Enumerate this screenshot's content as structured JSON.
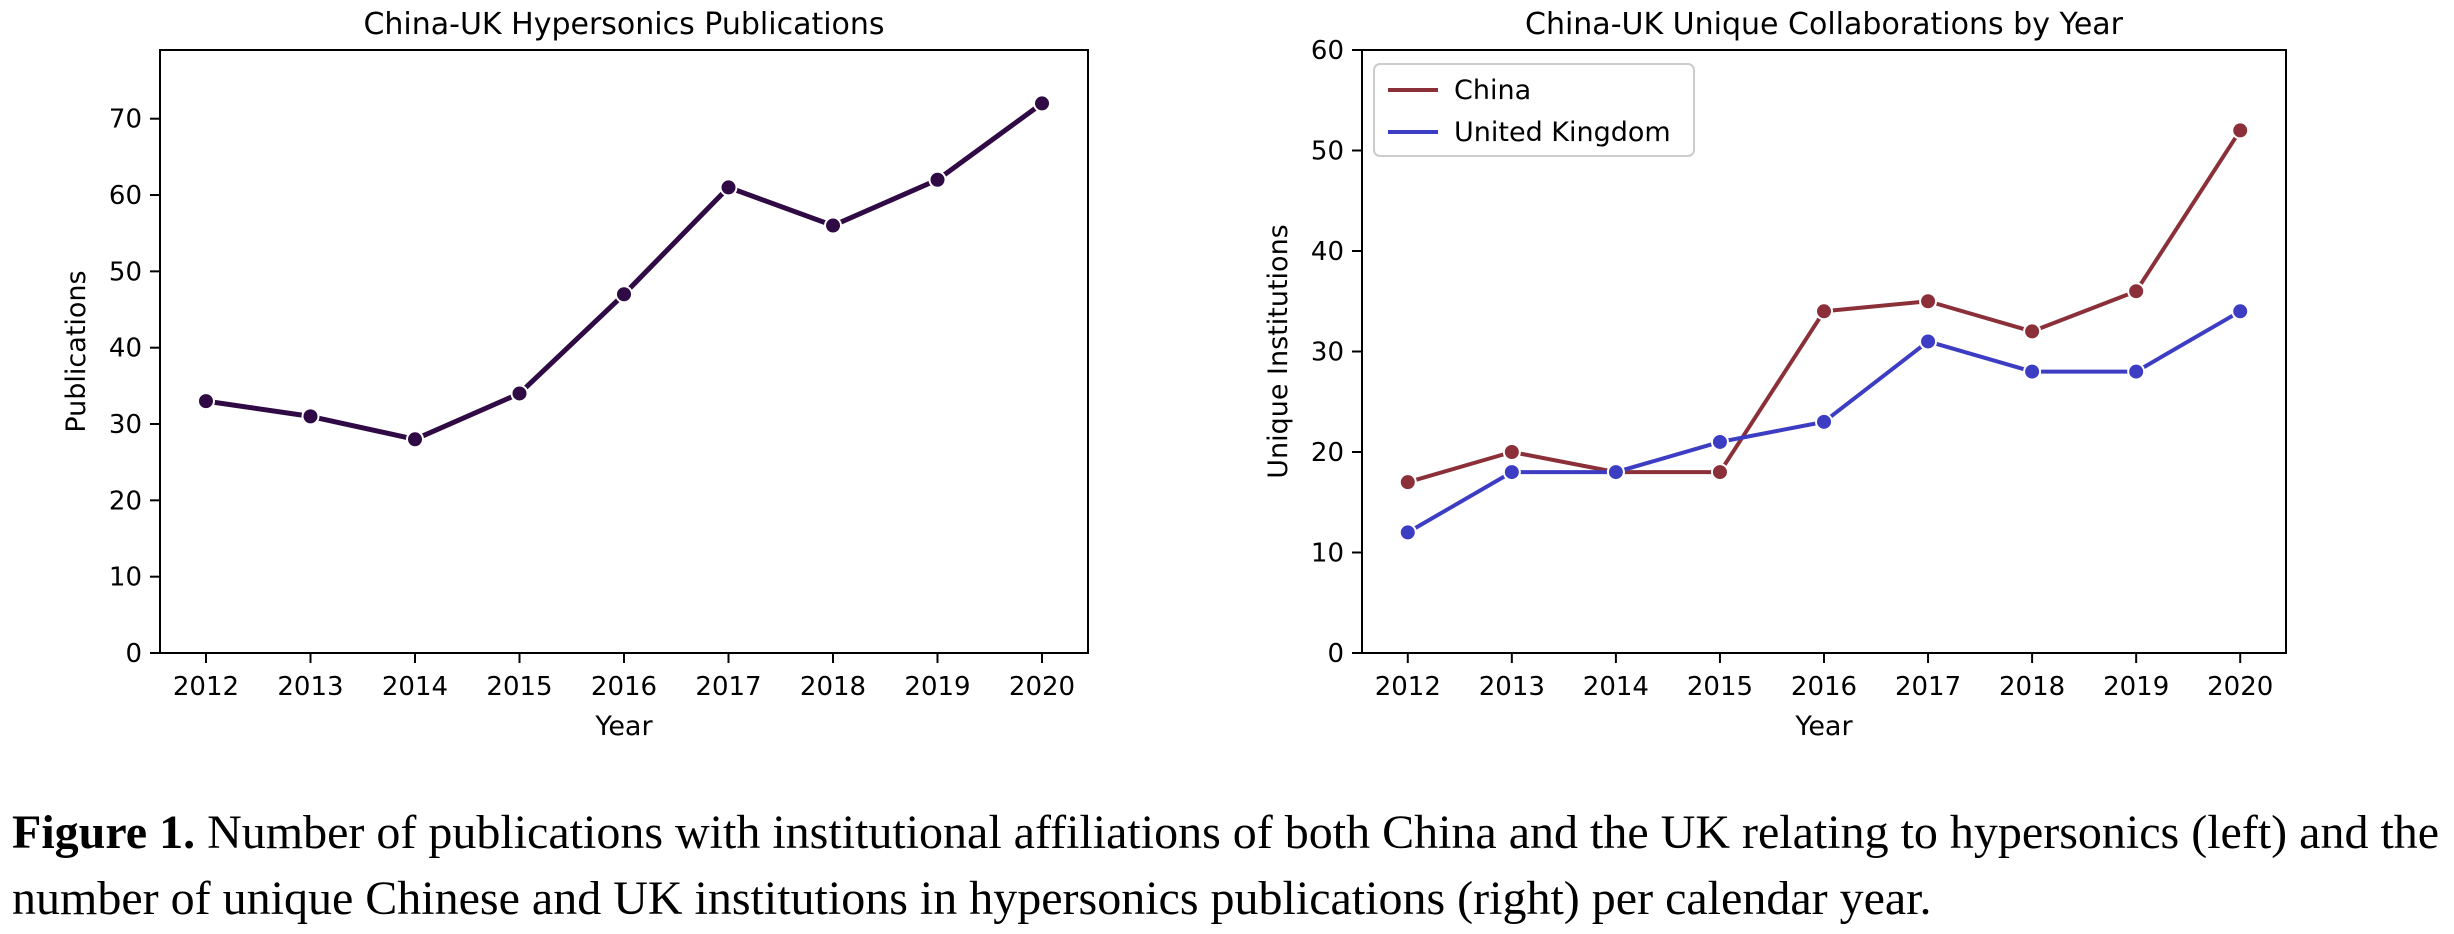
{
  "chart_data": [
    {
      "type": "line",
      "title": "China-UK Hypersonics Publications",
      "xlabel": "Year",
      "ylabel": "Publications",
      "x": [
        2012,
        2013,
        2014,
        2015,
        2016,
        2017,
        2018,
        2019,
        2020
      ],
      "ylim": [
        0,
        79
      ],
      "yticks": [
        0,
        10,
        20,
        30,
        40,
        50,
        60,
        70
      ],
      "grid": false,
      "series": [
        {
          "color": "#2f0a44",
          "values": [
            33,
            31,
            28,
            34,
            47,
            61,
            56,
            62,
            72
          ]
        }
      ]
    },
    {
      "type": "line",
      "title": "China-UK Unique Collaborations by Year",
      "xlabel": "Year",
      "ylabel": "Unique Institutions",
      "x": [
        2012,
        2013,
        2014,
        2015,
        2016,
        2017,
        2018,
        2019,
        2020
      ],
      "ylim": [
        0,
        60
      ],
      "yticks": [
        0,
        10,
        20,
        30,
        40,
        50,
        60
      ],
      "grid": false,
      "legend": "top-left",
      "series": [
        {
          "name": "China",
          "color": "#8b3039",
          "values": [
            17,
            20,
            18,
            18,
            34,
            35,
            32,
            36,
            52
          ]
        },
        {
          "name": "United Kingdom",
          "color": "#3d3dc4",
          "values": [
            12,
            18,
            18,
            21,
            23,
            31,
            28,
            28,
            34
          ]
        }
      ]
    }
  ],
  "caption": {
    "label": "Figure 1.",
    "text": " Number of publications with institutional affiliations of both China and the UK relating to hypersonics (left) and the number of unique Chinese and UK institutions in hypersonics publications (right) per calendar year."
  }
}
